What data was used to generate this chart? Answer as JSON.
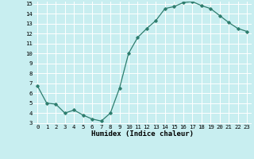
{
  "x": [
    0,
    1,
    2,
    3,
    4,
    5,
    6,
    7,
    8,
    9,
    10,
    11,
    12,
    13,
    14,
    15,
    16,
    17,
    18,
    19,
    20,
    21,
    22,
    23
  ],
  "y": [
    6.7,
    5.0,
    4.9,
    4.0,
    4.3,
    3.8,
    3.4,
    3.2,
    4.0,
    6.5,
    10.0,
    11.6,
    12.5,
    13.3,
    14.5,
    14.7,
    15.1,
    15.2,
    14.8,
    14.5,
    13.8,
    13.1,
    12.5,
    12.2
  ],
  "line_color": "#2e7d6e",
  "bg_color": "#c8eef0",
  "grid_color": "#ffffff",
  "xlabel": "Humidex (Indice chaleur)",
  "ylim": [
    3,
    15
  ],
  "xlim": [
    -0.5,
    23.5
  ],
  "yticks": [
    3,
    4,
    5,
    6,
    7,
    8,
    9,
    10,
    11,
    12,
    13,
    14,
    15
  ],
  "xticks": [
    0,
    1,
    2,
    3,
    4,
    5,
    6,
    7,
    8,
    9,
    10,
    11,
    12,
    13,
    14,
    15,
    16,
    17,
    18,
    19,
    20,
    21,
    22,
    23
  ],
  "tick_fontsize": 5.2,
  "label_fontsize": 6.5,
  "marker": "D",
  "marker_size": 1.8,
  "linewidth": 0.9
}
